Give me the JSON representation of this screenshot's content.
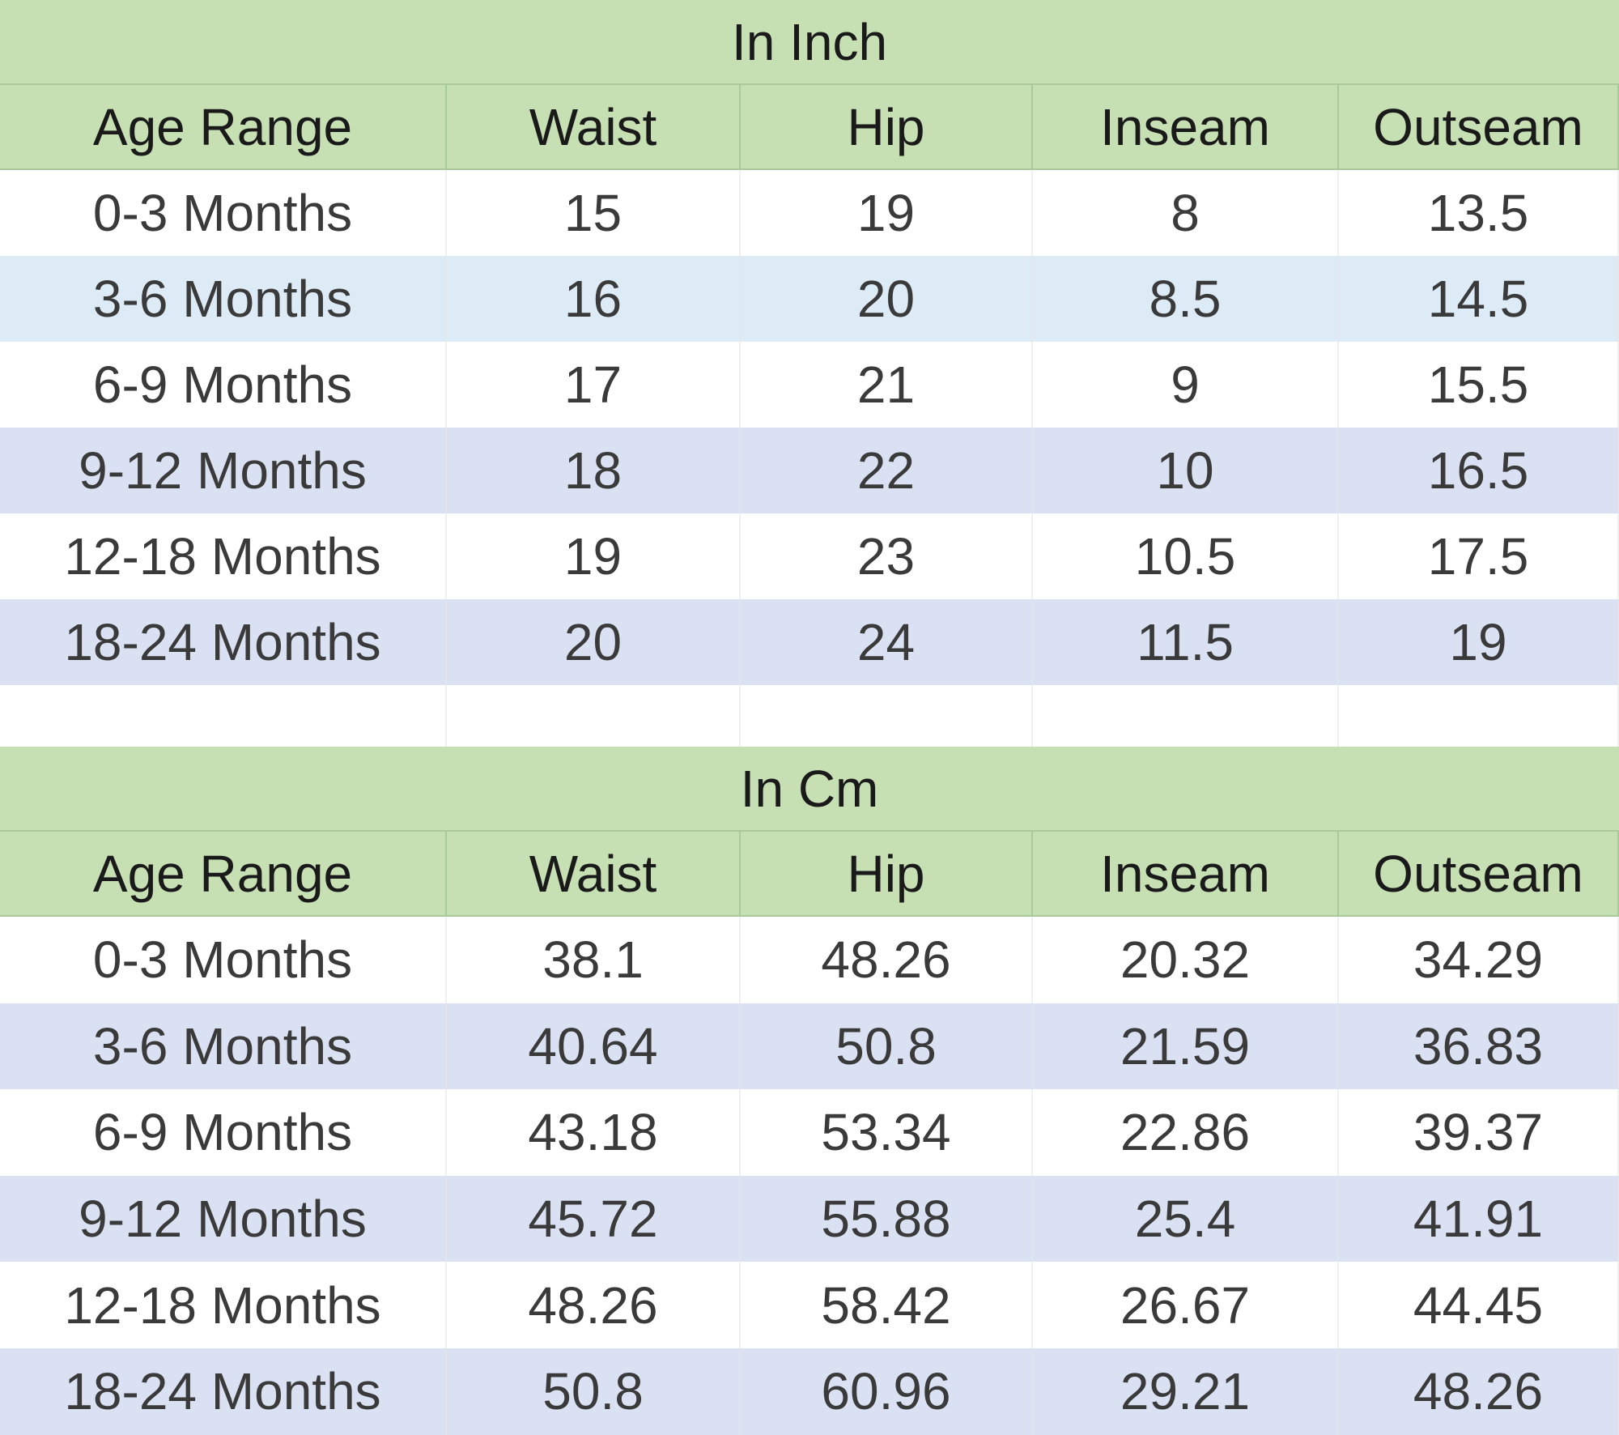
{
  "tables": [
    {
      "title": "In Inch",
      "columns": [
        "Age Range",
        "Waist",
        "Hip",
        "Inseam",
        "Outseam"
      ],
      "rows": [
        [
          "0-3 Months",
          15,
          19,
          8,
          13.5
        ],
        [
          "3-6 Months",
          16,
          20,
          8.5,
          14.5
        ],
        [
          "6-9 Months",
          17,
          21,
          9,
          15.5
        ],
        [
          "9-12 Months",
          18,
          22,
          10,
          16.5
        ],
        [
          "12-18 Months",
          19,
          23,
          10.5,
          17.5
        ],
        [
          "18-24 Months",
          20,
          24,
          11.5,
          19
        ]
      ]
    },
    {
      "title": "In Cm",
      "columns": [
        "Age Range",
        "Waist",
        "Hip",
        "Inseam",
        "Outseam"
      ],
      "rows": [
        [
          "0-3 Months",
          38.1,
          48.26,
          20.32,
          34.29
        ],
        [
          "3-6 Months",
          40.64,
          50.8,
          21.59,
          36.83
        ],
        [
          "6-9 Months",
          43.18,
          53.34,
          22.86,
          39.37
        ],
        [
          "9-12 Months",
          45.72,
          55.88,
          25.4,
          41.91
        ],
        [
          "12-18 Months",
          48.26,
          58.42,
          26.67,
          44.45
        ],
        [
          "18-24 Months",
          50.8,
          60.96,
          29.21,
          48.26
        ]
      ]
    }
  ]
}
